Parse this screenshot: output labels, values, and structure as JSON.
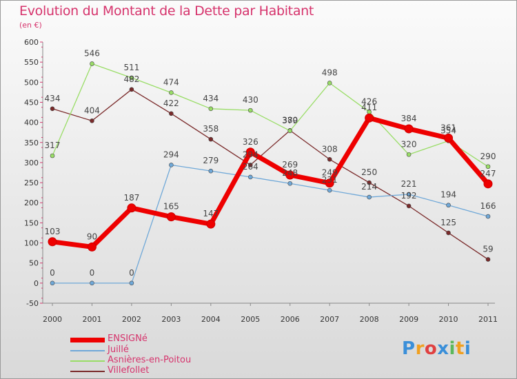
{
  "title": "Evolution du Montant de la Dette par Habitant",
  "unit": "(en €)",
  "logo": {
    "text": "Proxiti",
    "colors": [
      "#3a8fd9",
      "#f0a020",
      "#e04040",
      "#3a8fd9",
      "#5cb85c",
      "#f0a020",
      "#3a8fd9"
    ]
  },
  "chart_data": {
    "type": "line",
    "title": "Evolution du Montant de la Dette par Habitant",
    "ylabel": "(en €)",
    "xlabel": "",
    "x": [
      "2000",
      "2001",
      "2002",
      "2003",
      "2004",
      "2005",
      "2006",
      "2007",
      "2008",
      "2009",
      "2010",
      "2011"
    ],
    "ylim": [
      -50,
      600
    ],
    "yticks": [
      -50,
      0,
      50,
      100,
      150,
      200,
      250,
      300,
      350,
      400,
      450,
      500,
      550,
      600
    ],
    "grid": false,
    "legend_position": "bottom-left",
    "series": [
      {
        "name": "ENSIGNé",
        "color": "#ee0000",
        "width": 7,
        "marker": 6,
        "values": [
          103,
          90,
          187,
          165,
          147,
          326,
          269,
          249,
          411,
          384,
          361,
          247
        ],
        "labels": [
          "103",
          "90",
          "187",
          "165",
          "147",
          "326",
          "269",
          "249",
          "411",
          "384",
          "361",
          "247"
        ]
      },
      {
        "name": "Juillé",
        "color": "#6fa8d8",
        "width": 1.3,
        "marker": 3,
        "values": [
          0,
          0,
          0,
          294,
          279,
          264,
          248,
          231,
          214,
          221,
          194,
          166
        ],
        "labels": [
          "0",
          "0",
          "0",
          "294",
          "279",
          "264",
          "248",
          "231",
          "214",
          "221",
          "194",
          "166"
        ]
      },
      {
        "name": "Asnières-en-Poitou",
        "color": "#99dd66",
        "width": 1.3,
        "marker": 3,
        "values": [
          317,
          546,
          511,
          474,
          434,
          430,
          379,
          498,
          426,
          320,
          354,
          290
        ],
        "labels": [
          "317",
          "546",
          "511",
          "474",
          "434",
          "430",
          "379",
          "498",
          "426",
          "320",
          "354",
          "290"
        ]
      },
      {
        "name": "Villefollet",
        "color": "#7a2a2a",
        "width": 1.3,
        "marker": 3,
        "values": [
          434,
          404,
          482,
          422,
          358,
          294,
          380,
          308,
          250,
          192,
          125,
          59
        ],
        "labels": [
          "434",
          "404",
          "482",
          "422",
          "358",
          "294",
          "380",
          "308",
          "250",
          "192",
          "125",
          "59"
        ]
      }
    ]
  }
}
